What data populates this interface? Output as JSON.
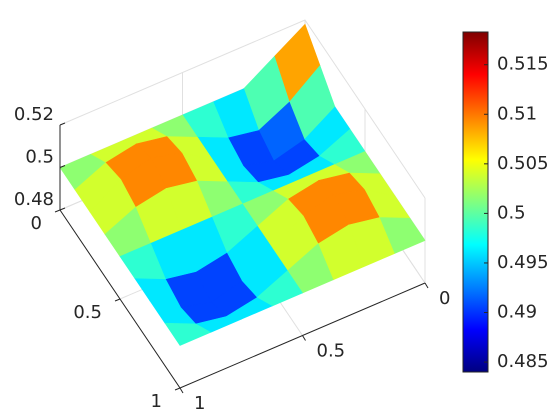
{
  "chart_data": {
    "type": "surface",
    "colormap": "jet",
    "x": [
      0,
      0.125,
      0.25,
      0.375,
      0.5,
      0.625,
      0.75,
      0.875,
      1
    ],
    "y": [
      0,
      0.125,
      0.25,
      0.375,
      0.5,
      0.625,
      0.75,
      0.875,
      1
    ],
    "z": [
      [
        0.518,
        0.509,
        0.5,
        0.5,
        0.5,
        0.5,
        0.5,
        0.5,
        0.5
      ],
      [
        0.509,
        0.498,
        0.4908,
        0.4935,
        0.5,
        0.5065,
        0.5092,
        0.5065,
        0.5
      ],
      [
        0.5,
        0.4908,
        0.487,
        0.4908,
        0.5,
        0.5092,
        0.513,
        0.5092,
        0.5
      ],
      [
        0.5,
        0.4935,
        0.4908,
        0.4935,
        0.5,
        0.5065,
        0.5092,
        0.5065,
        0.5
      ],
      [
        0.5,
        0.5,
        0.5,
        0.5,
        0.5,
        0.5,
        0.5,
        0.5,
        0.5
      ],
      [
        0.5,
        0.5065,
        0.5092,
        0.5065,
        0.5,
        0.4935,
        0.4908,
        0.4935,
        0.5
      ],
      [
        0.5,
        0.5092,
        0.513,
        0.5092,
        0.5,
        0.4908,
        0.487,
        0.4908,
        0.5
      ],
      [
        0.5,
        0.5065,
        0.5092,
        0.5065,
        0.5,
        0.4935,
        0.4908,
        0.4935,
        0.5
      ],
      [
        0.5,
        0.5,
        0.5,
        0.5,
        0.5,
        0.5,
        0.5,
        0.5,
        0.5
      ]
    ],
    "xlim": [
      0,
      1
    ],
    "ylim": [
      0,
      1
    ],
    "zlim": [
      0.48,
      0.52
    ],
    "xticks": [
      0,
      0.5,
      1
    ],
    "yticks": [
      0,
      0.5,
      1
    ],
    "zticks": [
      0.48,
      0.5,
      0.52
    ],
    "clim": [
      0.484,
      0.5183
    ],
    "colorbar_ticks": [
      0.485,
      0.49,
      0.495,
      0.5,
      0.505,
      0.51,
      0.515
    ],
    "grid": true
  }
}
